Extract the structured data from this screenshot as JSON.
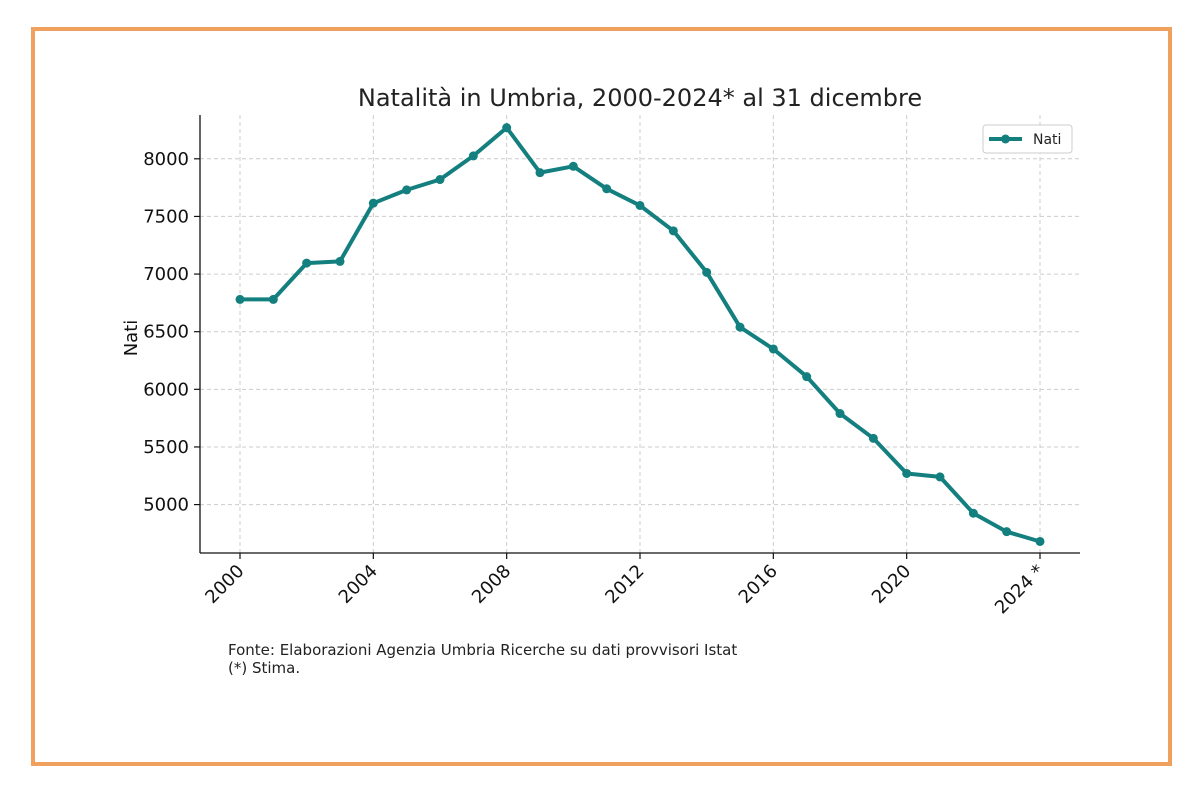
{
  "colors": {
    "frame": "#f0a15e",
    "series": "#147f7f",
    "grid": "#cccccc",
    "axis": "#111111"
  },
  "chart_data": {
    "type": "line",
    "title": "Natalità in Umbria, 2000-2024* al 31 dicembre",
    "xlabel": "",
    "ylabel": "Nati",
    "x": [
      2000,
      2001,
      2002,
      2003,
      2004,
      2005,
      2006,
      2007,
      2008,
      2009,
      2010,
      2011,
      2012,
      2013,
      2014,
      2015,
      2016,
      2017,
      2018,
      2019,
      2020,
      2021,
      2022,
      2023,
      2024
    ],
    "series": [
      {
        "name": "Nati",
        "values": [
          6780,
          6780,
          7095,
          7110,
          7615,
          7730,
          7820,
          8025,
          8270,
          7880,
          7935,
          7740,
          7595,
          7375,
          7015,
          6540,
          6350,
          6110,
          5790,
          5575,
          5270,
          5240,
          4925,
          4765,
          4680
        ]
      }
    ],
    "xticks": [
      "2000",
      "2004",
      "2008",
      "2012",
      "2016",
      "2020",
      "2024 *"
    ],
    "xtick_values": [
      2000,
      2004,
      2008,
      2012,
      2016,
      2020,
      2024
    ],
    "yticks": [
      5000,
      5500,
      6000,
      6500,
      7000,
      7500,
      8000
    ],
    "xlim": [
      1998.8,
      2025.2
    ],
    "ylim": [
      4580,
      8380
    ],
    "grid": true,
    "legend_position": "top-right",
    "source_lines": [
      "Fonte: Elaborazioni Agenzia Umbria Ricerche su dati provvisori Istat",
      "(*) Stima."
    ]
  }
}
